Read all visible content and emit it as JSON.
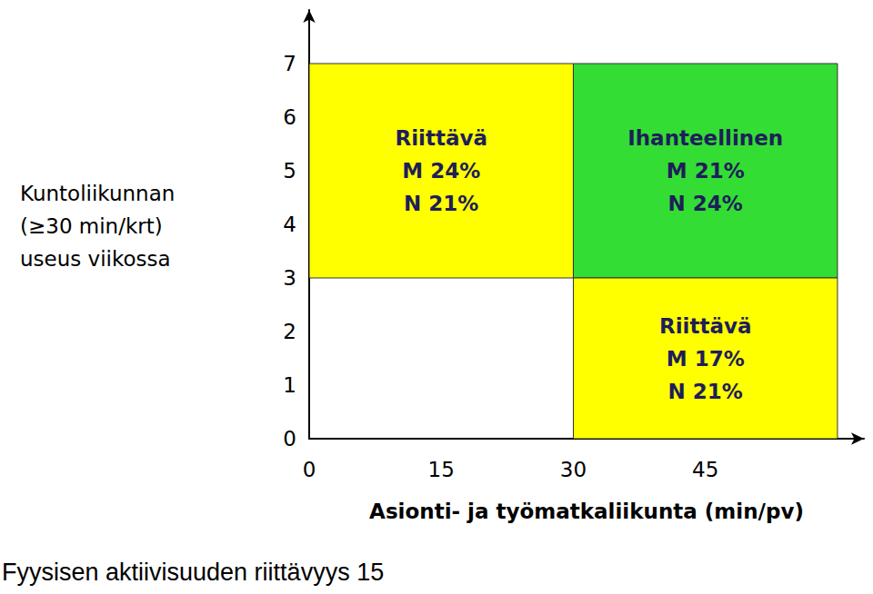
{
  "chart_data": {
    "type": "quadrant",
    "x_label": "Asionti- ja työmatkaliikunta (min/pv)",
    "y_label": "Kuntoliikunnan\n(≥30 min/krt)\nuseus viikossa",
    "footer": "Fyysisen aktiivisuuden riittävyys 15",
    "xlim": [
      0,
      63
    ],
    "xticks": [
      0,
      15,
      30,
      45
    ],
    "ylim": [
      0,
      8
    ],
    "yticks": [
      0,
      1,
      2,
      3,
      4,
      5,
      6,
      7
    ],
    "grid": false,
    "regions": [
      {
        "name": "Riittävä",
        "x": [
          0,
          30
        ],
        "y": [
          3,
          7
        ],
        "color": "#ffff00",
        "values": [
          24,
          21
        ],
        "value_labels": [
          "M 24%",
          "N 21%"
        ]
      },
      {
        "name": "Ihanteellinen",
        "x": [
          30,
          60
        ],
        "y": [
          3,
          7
        ],
        "color": "#33dd33",
        "values": [
          21,
          24
        ],
        "value_labels": [
          "M 21%",
          "N 24%"
        ]
      },
      {
        "name": "Riittävä",
        "x": [
          30,
          60
        ],
        "y": [
          0,
          3
        ],
        "color": "#ffff00",
        "values": [
          17,
          21
        ],
        "value_labels": [
          "M 17%",
          "N 21%"
        ]
      }
    ]
  }
}
